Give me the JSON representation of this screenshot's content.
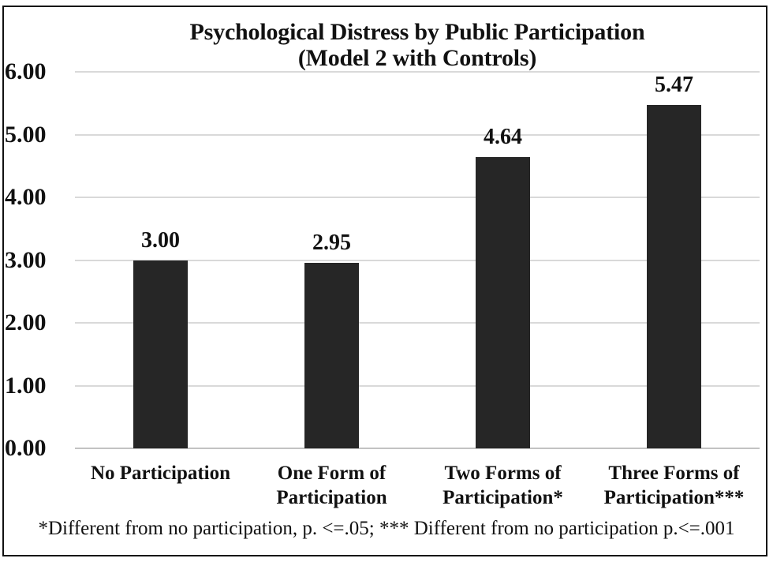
{
  "figure": {
    "title_line1": "Psychological Distress by Public Participation",
    "title_line2": "(Model 2 with Controls)",
    "footnote": "*Different from no participation, p. <=.05; *** Different from no participation p.<=.001"
  },
  "chart_data": {
    "type": "bar",
    "title": "Psychological Distress by Public Participation (Model 2 with Controls)",
    "categories": [
      "No Participation",
      "One Form of Participation",
      "Two Forms of Participation*",
      "Three Forms of Participation***"
    ],
    "values": [
      3.0,
      2.95,
      4.64,
      5.47
    ],
    "value_labels": [
      "3.00",
      "2.95",
      "4.64",
      "5.47"
    ],
    "xlabel": "",
    "ylabel": "",
    "ylim": [
      0,
      6
    ],
    "ytick_step": 1,
    "ytick_labels": [
      "0.00",
      "1.00",
      "2.00",
      "3.00",
      "4.00",
      "5.00",
      "6.00"
    ],
    "grid": true,
    "legend": false,
    "footnote": "*Different from no participation, p. <=.05; *** Different from no participation p.<=.001",
    "colors": {
      "bar": "#262626",
      "gridline": "#d9d9d9",
      "baseline": "#c2c2c2",
      "text": "#111111",
      "background": "#ffffff"
    }
  }
}
